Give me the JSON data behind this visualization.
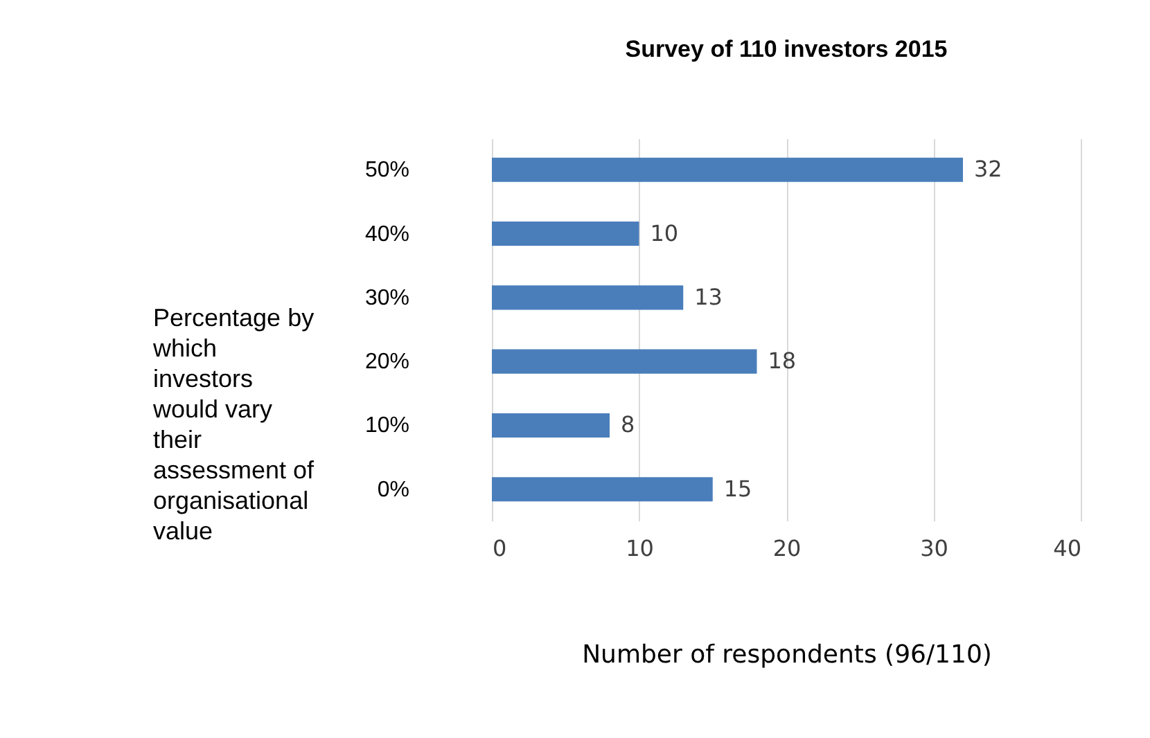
{
  "chart_data": {
    "type": "bar",
    "orientation": "horizontal",
    "title": "Survey of 110 investors 2015",
    "xlabel": "Number of respondents (96/110)",
    "ylabel": "Percentage by which investors would vary their assessment of organisational value",
    "categories": [
      "50%",
      "40%",
      "30%",
      "20%",
      "10%",
      "0%"
    ],
    "values": [
      32,
      10,
      13,
      18,
      8,
      15
    ],
    "color": "#4a7ebb",
    "xlim": [
      0,
      40
    ],
    "xticks": [
      0,
      10,
      20,
      30,
      40
    ],
    "grid": "x",
    "data_labels": true
  }
}
